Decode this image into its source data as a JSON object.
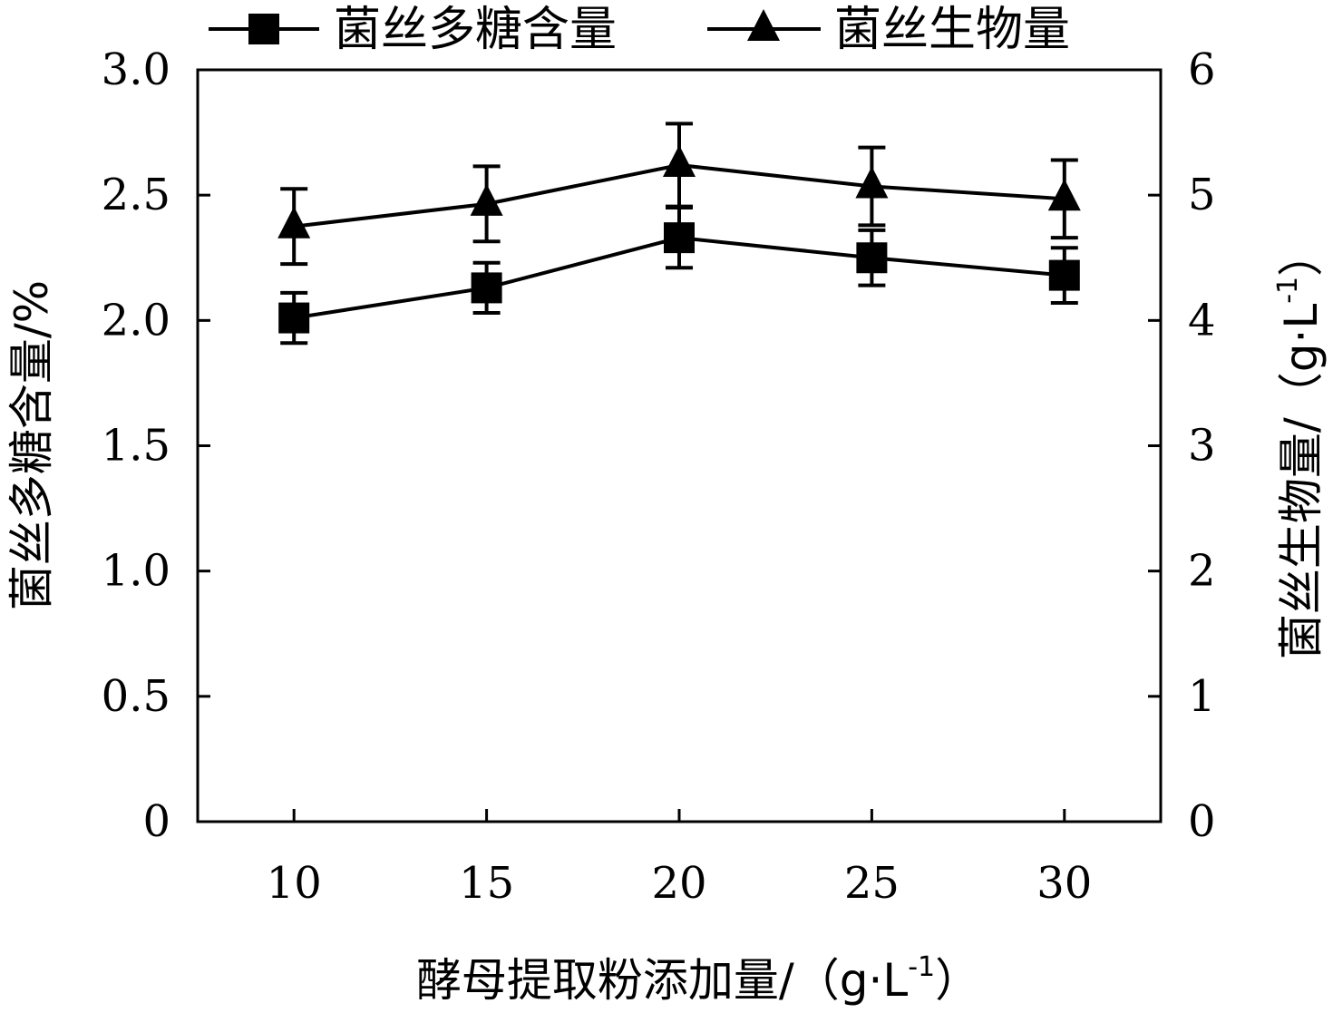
{
  "chart_data": {
    "type": "line",
    "x": [
      10,
      15,
      20,
      25,
      30
    ],
    "xticks": [
      "10",
      "15",
      "20",
      "25",
      "30"
    ],
    "xlim": [
      7.5,
      32.5
    ],
    "xlabel": "酵母提取粉添加量/（g·L",
    "xlabel_sup": "-1",
    "xlabel_close": "）",
    "y_left": {
      "label": "菌丝多糖含量/%",
      "lim": [
        0,
        3.0
      ],
      "ticks": [
        "0",
        "0.5",
        "1.0",
        "1.5",
        "2.0",
        "2.5",
        "3.0"
      ]
    },
    "y_right": {
      "label": "菌丝生物量/（g·L",
      "label_sup": "-1",
      "label_close": "）",
      "lim": [
        0,
        6
      ],
      "ticks": [
        "0",
        "1",
        "2",
        "3",
        "4",
        "5",
        "6"
      ]
    },
    "series": [
      {
        "name": "菌丝多糖含量",
        "axis": "left",
        "marker": "square",
        "values": [
          2.01,
          2.13,
          2.33,
          2.25,
          2.18
        ],
        "errors": [
          0.1,
          0.1,
          0.12,
          0.11,
          0.11
        ]
      },
      {
        "name": "菌丝生物量",
        "axis": "right",
        "marker": "triangle",
        "values": [
          4.75,
          4.93,
          5.24,
          5.07,
          4.97
        ],
        "errors": [
          0.3,
          0.3,
          0.33,
          0.31,
          0.31
        ]
      }
    ],
    "legend_position": "top",
    "grid": false
  }
}
